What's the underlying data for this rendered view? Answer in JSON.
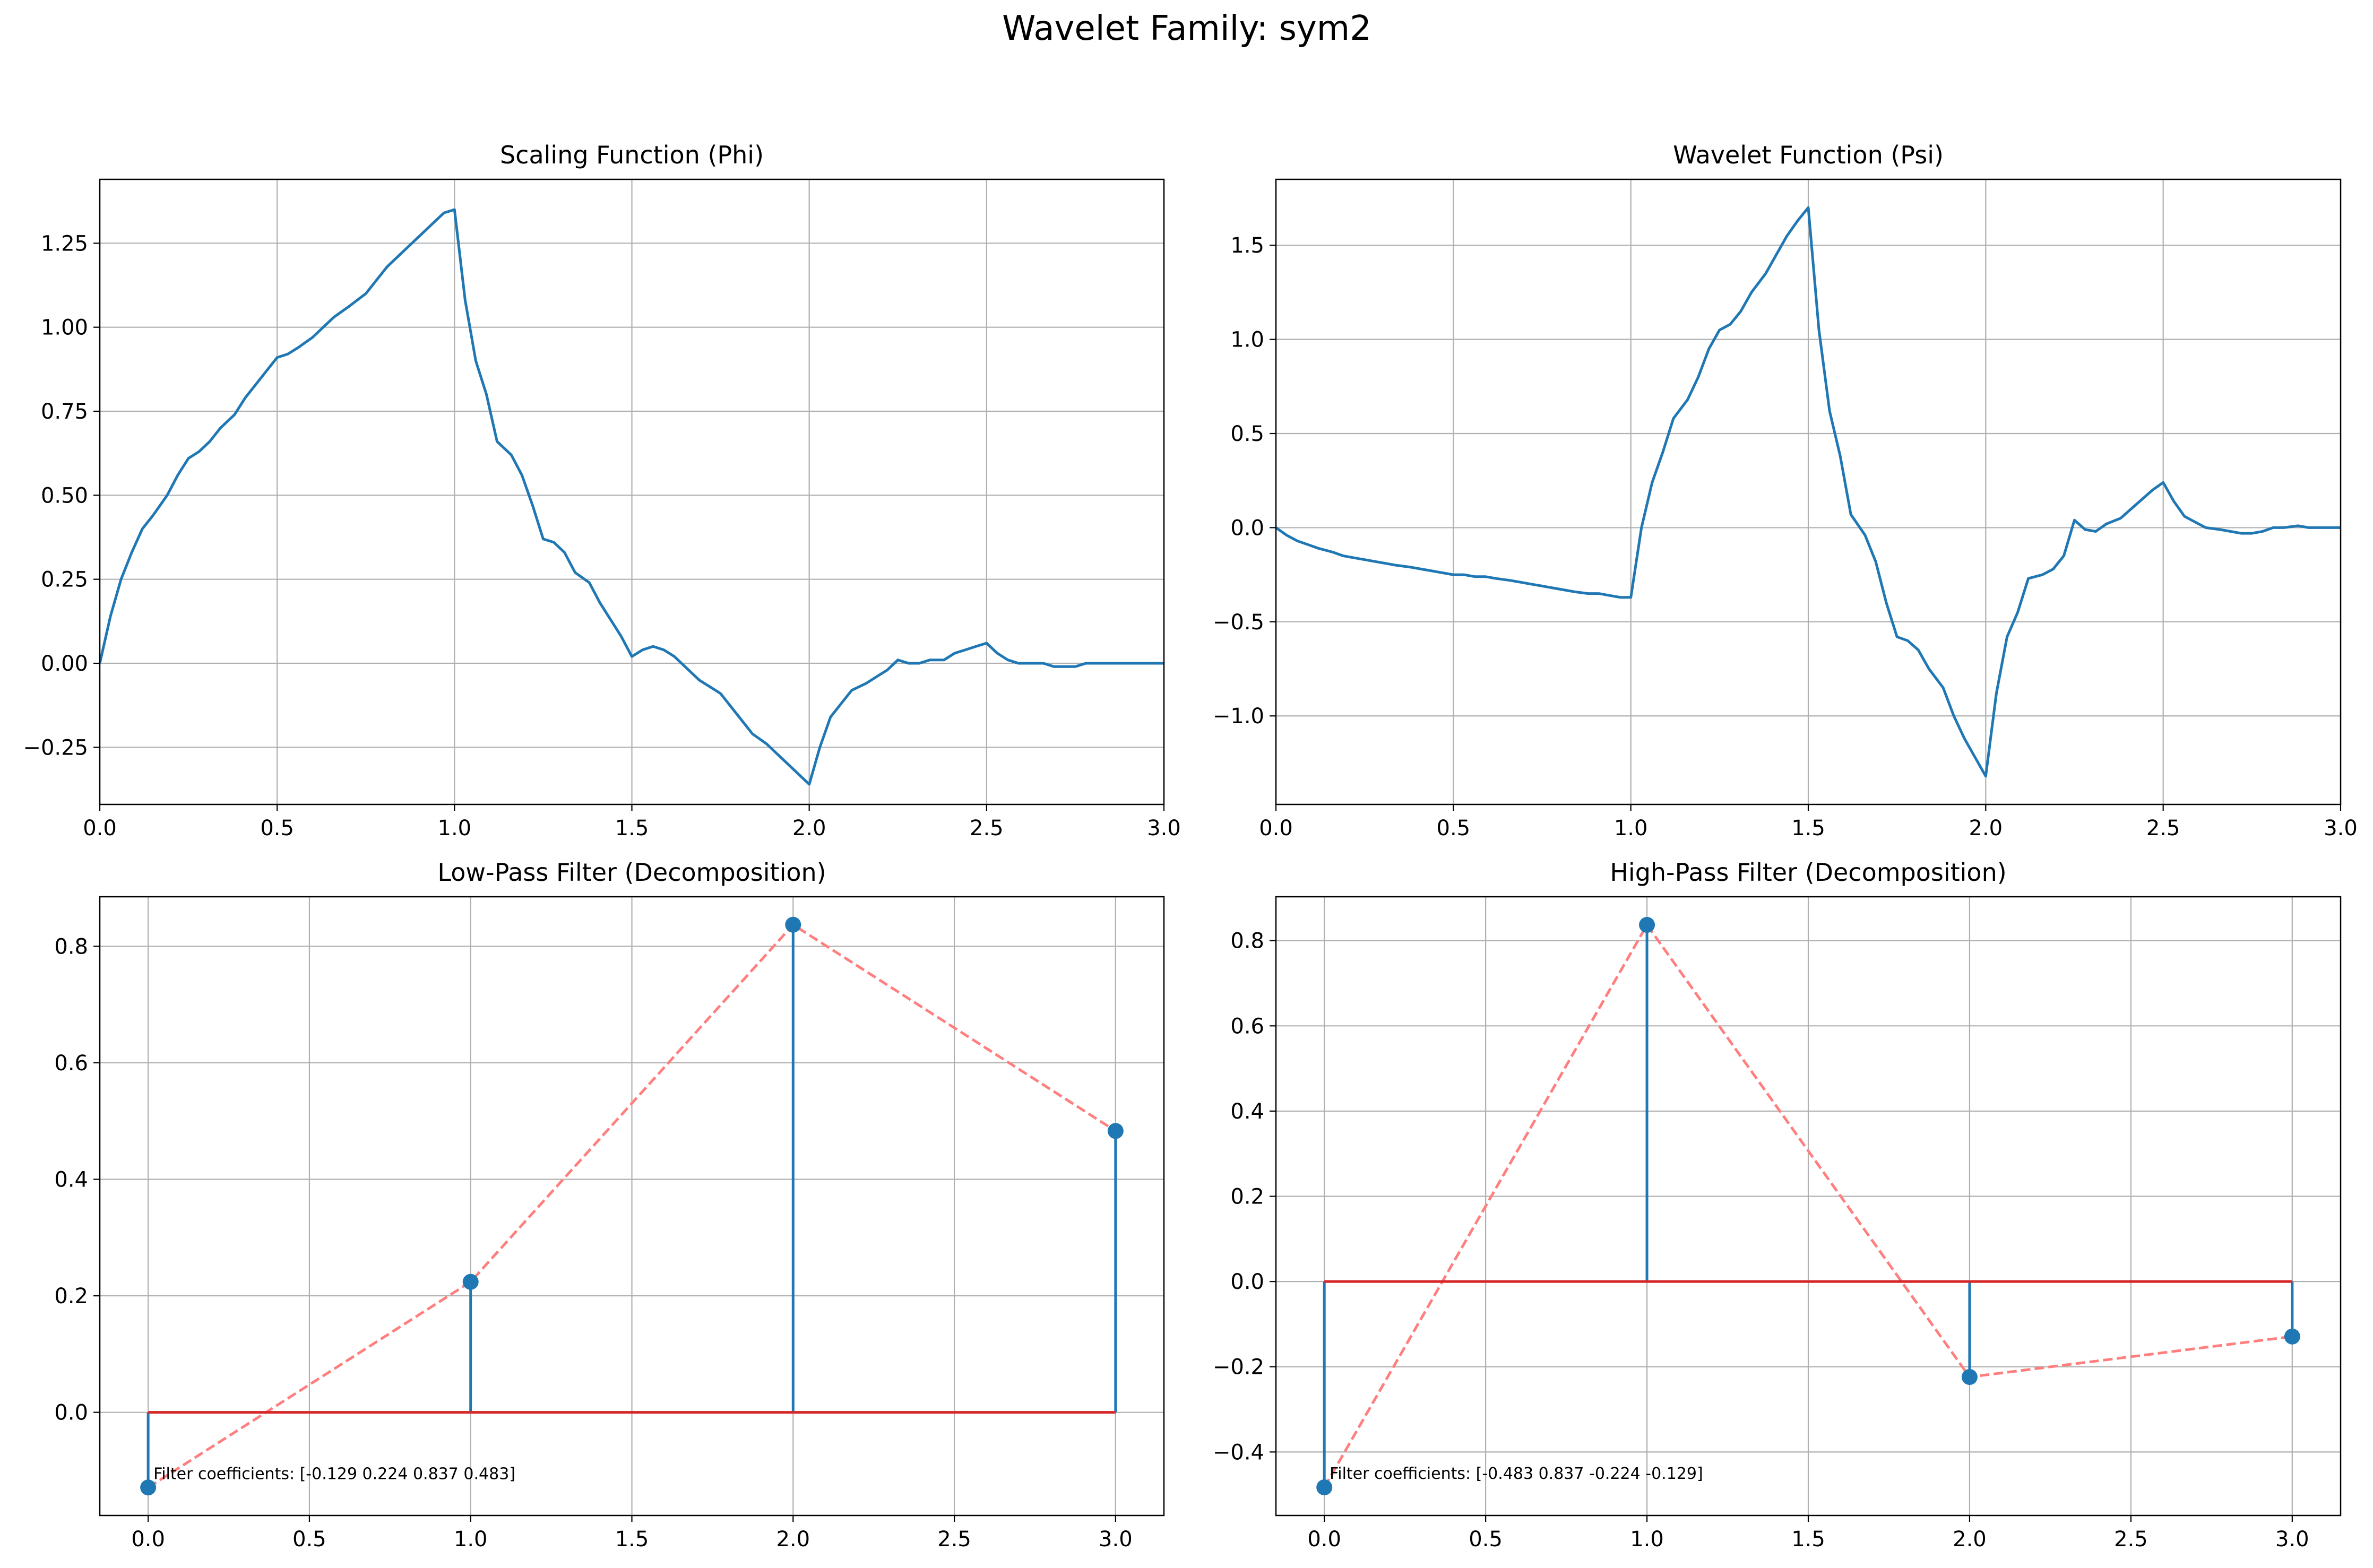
{
  "suptitle": "Wavelet Family: sym2",
  "colors": {
    "line": "#1f77b4",
    "baseline": "#d62728",
    "connector": "#ff7f7f",
    "grid": "#b0b0b0"
  },
  "chart_data": [
    {
      "type": "line",
      "title": "Scaling Function (Phi)",
      "xlim": [
        0,
        3
      ],
      "ylim": [
        -0.42,
        1.44
      ],
      "xticks": [
        0,
        0.5,
        1.0,
        1.5,
        2.0,
        2.5,
        3.0
      ],
      "xtick_labels": [
        "0.0",
        "0.5",
        "1.0",
        "1.5",
        "2.0",
        "2.5",
        "3.0"
      ],
      "yticks": [
        -0.25,
        0,
        0.25,
        0.5,
        0.75,
        1.0,
        1.25
      ],
      "ytick_labels": [
        "−0.25",
        "0.00",
        "0.25",
        "0.50",
        "0.75",
        "1.00",
        "1.25"
      ],
      "grid": true,
      "x": [
        0,
        0.03,
        0.06,
        0.09,
        0.12,
        0.15,
        0.19,
        0.22,
        0.25,
        0.28,
        0.31,
        0.34,
        0.38,
        0.41,
        0.44,
        0.47,
        0.5,
        0.53,
        0.56,
        0.6,
        0.63,
        0.66,
        0.7,
        0.75,
        0.78,
        0.81,
        0.84,
        0.88,
        0.91,
        0.94,
        0.97,
        1.0,
        1.03,
        1.06,
        1.09,
        1.12,
        1.16,
        1.19,
        1.22,
        1.25,
        1.28,
        1.31,
        1.34,
        1.38,
        1.41,
        1.44,
        1.47,
        1.5,
        1.53,
        1.56,
        1.59,
        1.62,
        1.66,
        1.69,
        1.72,
        1.75,
        1.78,
        1.81,
        1.84,
        1.88,
        1.91,
        1.94,
        1.97,
        2.0,
        2.03,
        2.06,
        2.09,
        2.12,
        2.16,
        2.19,
        2.22,
        2.25,
        2.28,
        2.31,
        2.34,
        2.38,
        2.41,
        2.44,
        2.47,
        2.5,
        2.53,
        2.56,
        2.59,
        2.62,
        2.66,
        2.69,
        2.72,
        2.75,
        2.78,
        2.81,
        2.84,
        2.88,
        2.91,
        2.94,
        2.97,
        3.0
      ],
      "y": [
        0,
        0.14,
        0.25,
        0.33,
        0.4,
        0.44,
        0.5,
        0.56,
        0.61,
        0.63,
        0.66,
        0.7,
        0.74,
        0.79,
        0.83,
        0.87,
        0.91,
        0.92,
        0.94,
        0.97,
        1.0,
        1.03,
        1.06,
        1.1,
        1.14,
        1.18,
        1.21,
        1.25,
        1.28,
        1.31,
        1.34,
        1.35,
        1.08,
        0.9,
        0.8,
        0.66,
        0.62,
        0.56,
        0.47,
        0.37,
        0.36,
        0.33,
        0.27,
        0.24,
        0.18,
        0.13,
        0.08,
        0.02,
        0.04,
        0.05,
        0.04,
        0.02,
        -0.02,
        -0.05,
        -0.07,
        -0.09,
        -0.13,
        -0.17,
        -0.21,
        -0.24,
        -0.27,
        -0.3,
        -0.33,
        -0.36,
        -0.25,
        -0.16,
        -0.12,
        -0.08,
        -0.06,
        -0.04,
        -0.02,
        0.01,
        0.0,
        0.0,
        0.01,
        0.01,
        0.03,
        0.04,
        0.05,
        0.06,
        0.03,
        0.01,
        0.0,
        0.0,
        0.0,
        -0.01,
        -0.01,
        -0.01,
        0.0,
        0.0,
        0.0,
        0.0,
        0.0,
        0.0,
        0.0,
        0.0
      ]
    },
    {
      "type": "line",
      "title": "Wavelet Function (Psi)",
      "xlim": [
        0,
        3
      ],
      "ylim": [
        -1.47,
        1.85
      ],
      "xticks": [
        0,
        0.5,
        1.0,
        1.5,
        2.0,
        2.5,
        3.0
      ],
      "xtick_labels": [
        "0.0",
        "0.5",
        "1.0",
        "1.5",
        "2.0",
        "2.5",
        "3.0"
      ],
      "yticks": [
        -1.0,
        -0.5,
        0,
        0.5,
        1.0,
        1.5
      ],
      "ytick_labels": [
        "−1.0",
        "−0.5",
        "0.0",
        "0.5",
        "1.0",
        "1.5"
      ],
      "grid": true,
      "x": [
        0,
        0.03,
        0.06,
        0.09,
        0.12,
        0.16,
        0.19,
        0.22,
        0.25,
        0.28,
        0.31,
        0.34,
        0.38,
        0.41,
        0.44,
        0.47,
        0.5,
        0.53,
        0.56,
        0.59,
        0.62,
        0.66,
        0.69,
        0.72,
        0.75,
        0.78,
        0.81,
        0.84,
        0.88,
        0.91,
        0.94,
        0.97,
        1.0,
        1.03,
        1.06,
        1.09,
        1.12,
        1.16,
        1.19,
        1.22,
        1.25,
        1.28,
        1.31,
        1.34,
        1.38,
        1.41,
        1.44,
        1.47,
        1.5,
        1.53,
        1.56,
        1.59,
        1.62,
        1.66,
        1.69,
        1.72,
        1.75,
        1.78,
        1.81,
        1.84,
        1.88,
        1.91,
        1.94,
        1.97,
        2.0,
        2.03,
        2.06,
        2.09,
        2.12,
        2.16,
        2.19,
        2.22,
        2.25,
        2.28,
        2.31,
        2.34,
        2.38,
        2.41,
        2.44,
        2.47,
        2.5,
        2.53,
        2.56,
        2.59,
        2.62,
        2.66,
        2.69,
        2.72,
        2.75,
        2.78,
        2.81,
        2.84,
        2.88,
        2.91,
        2.94,
        2.97,
        3.0
      ],
      "y": [
        0,
        -0.04,
        -0.07,
        -0.09,
        -0.11,
        -0.13,
        -0.15,
        -0.16,
        -0.17,
        -0.18,
        -0.19,
        -0.2,
        -0.21,
        -0.22,
        -0.23,
        -0.24,
        -0.25,
        -0.25,
        -0.26,
        -0.26,
        -0.27,
        -0.28,
        -0.29,
        -0.3,
        -0.31,
        -0.32,
        -0.33,
        -0.34,
        -0.35,
        -0.35,
        -0.36,
        -0.37,
        -0.37,
        0.0,
        0.24,
        0.4,
        0.58,
        0.68,
        0.8,
        0.95,
        1.05,
        1.08,
        1.15,
        1.25,
        1.35,
        1.45,
        1.55,
        1.63,
        1.7,
        1.05,
        0.62,
        0.38,
        0.07,
        -0.04,
        -0.18,
        -0.4,
        -0.58,
        -0.6,
        -0.65,
        -0.75,
        -0.85,
        -1.0,
        -1.12,
        -1.22,
        -1.32,
        -0.88,
        -0.58,
        -0.45,
        -0.27,
        -0.25,
        -0.22,
        -0.15,
        0.04,
        -0.01,
        -0.02,
        0.02,
        0.05,
        0.1,
        0.15,
        0.2,
        0.24,
        0.14,
        0.06,
        0.03,
        0.0,
        -0.01,
        -0.02,
        -0.03,
        -0.03,
        -0.02,
        0.0,
        0.0,
        0.01,
        0.0,
        0.0,
        0.0,
        0.0
      ]
    },
    {
      "type": "stem",
      "title": "Low-Pass Filter (Decomposition)",
      "xlim": [
        -0.15,
        3.15
      ],
      "ylim": [
        -0.177,
        0.885
      ],
      "xticks": [
        0,
        0.5,
        1.0,
        1.5,
        2.0,
        2.5,
        3.0
      ],
      "xtick_labels": [
        "0.0",
        "0.5",
        "1.0",
        "1.5",
        "2.0",
        "2.5",
        "3.0"
      ],
      "yticks": [
        0,
        0.2,
        0.4,
        0.6,
        0.8
      ],
      "ytick_labels": [
        "0.0",
        "0.2",
        "0.4",
        "0.6",
        "0.8"
      ],
      "grid": true,
      "x": [
        0,
        1,
        2,
        3
      ],
      "y": [
        -0.129,
        0.224,
        0.837,
        0.483
      ],
      "annotation": "Filter coefficients: [-0.129  0.224  0.837  0.483]"
    },
    {
      "type": "stem",
      "title": "High-Pass Filter (Decomposition)",
      "xlim": [
        -0.15,
        3.15
      ],
      "ylim": [
        -0.549,
        0.903
      ],
      "xticks": [
        0,
        0.5,
        1.0,
        1.5,
        2.0,
        2.5,
        3.0
      ],
      "xtick_labels": [
        "0.0",
        "0.5",
        "1.0",
        "1.5",
        "2.0",
        "2.5",
        "3.0"
      ],
      "yticks": [
        -0.4,
        -0.2,
        0,
        0.2,
        0.4,
        0.6,
        0.8
      ],
      "ytick_labels": [
        "−0.4",
        "−0.2",
        "0.0",
        "0.2",
        "0.4",
        "0.6",
        "0.8"
      ],
      "grid": true,
      "x": [
        0,
        1,
        2,
        3
      ],
      "y": [
        -0.483,
        0.837,
        -0.224,
        -0.129
      ],
      "annotation": "Filter coefficients: [-0.483  0.837 -0.224 -0.129]"
    }
  ]
}
